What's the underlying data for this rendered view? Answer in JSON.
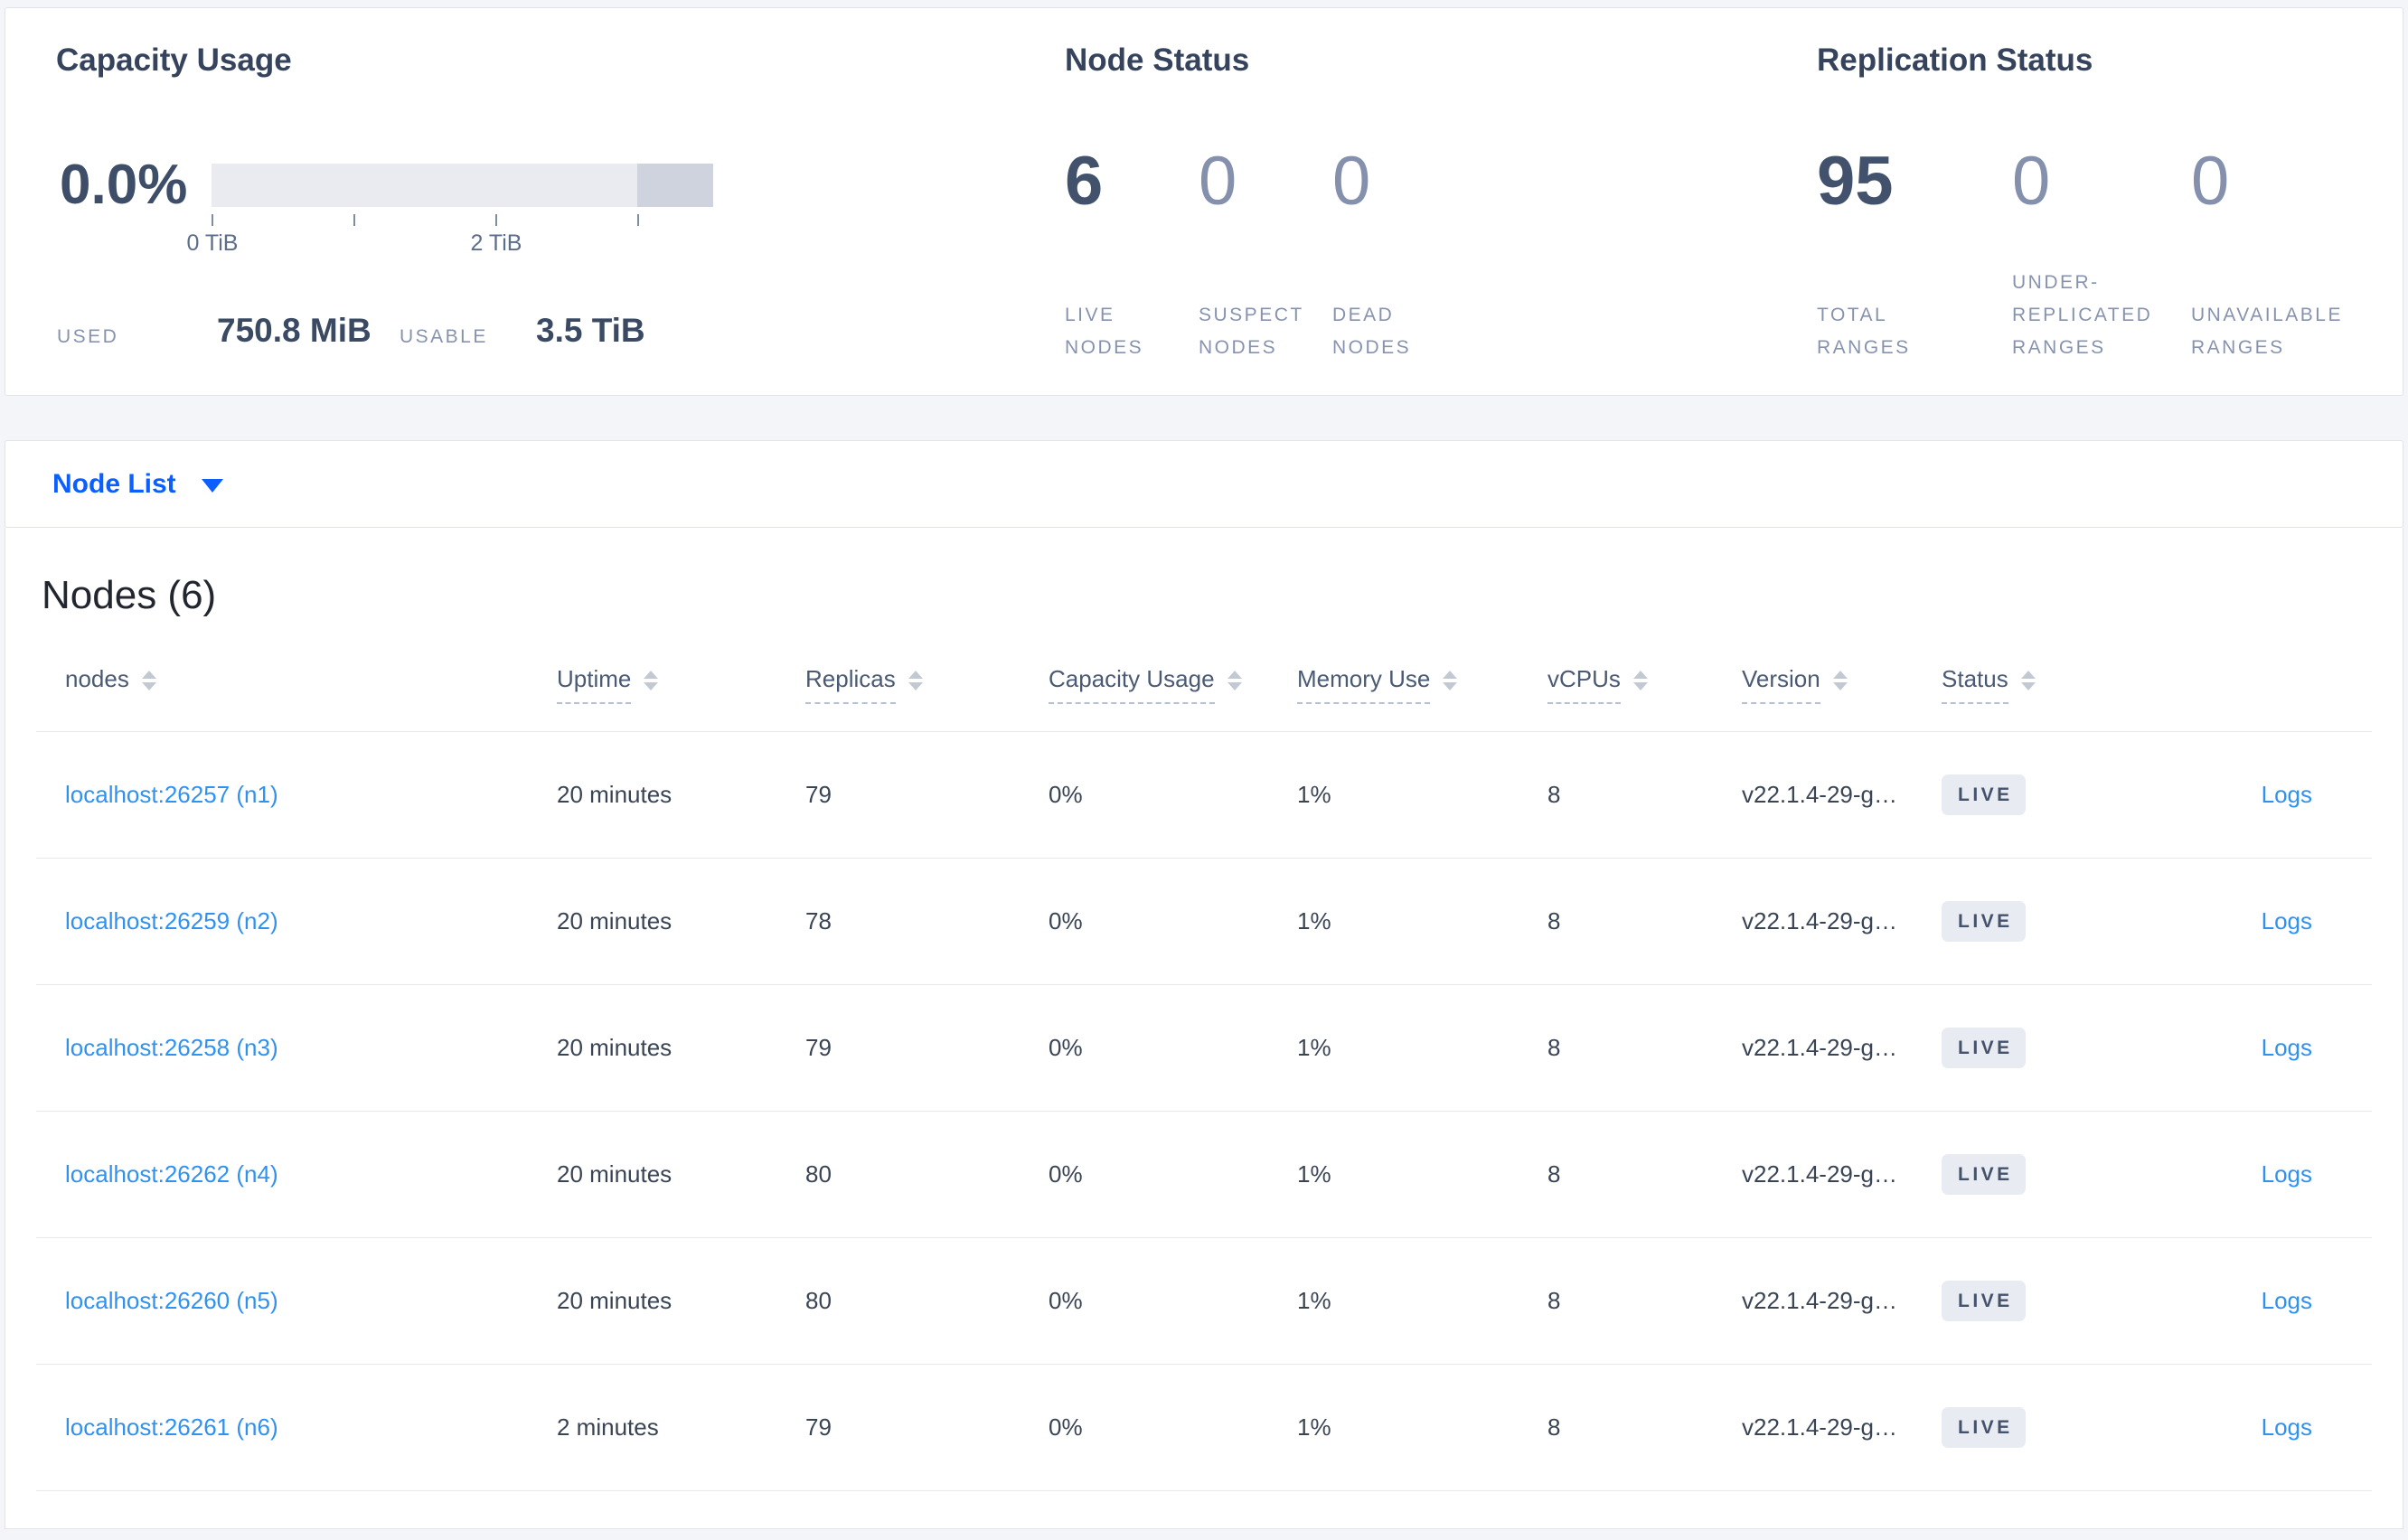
{
  "summary": {
    "capacity": {
      "title": "Capacity Usage",
      "percent": "0.0%",
      "axis_tick_labels": [
        "0 TiB",
        "2 TiB"
      ],
      "used_label": "USED",
      "used_value": "750.8 MiB",
      "usable_label": "USABLE",
      "usable_value": "3.5 TiB"
    },
    "node_status": {
      "title": "Node Status",
      "stats": [
        {
          "value": "6",
          "label": "LIVE NODES"
        },
        {
          "value": "0",
          "label": "SUSPECT NODES"
        },
        {
          "value": "0",
          "label": "DEAD NODES"
        }
      ]
    },
    "replication": {
      "title": "Replication Status",
      "stats": [
        {
          "value": "95",
          "label": "TOTAL RANGES"
        },
        {
          "value": "0",
          "label": "UNDER-REPLICATED RANGES"
        },
        {
          "value": "0",
          "label": "UNAVAILABLE RANGES"
        }
      ]
    }
  },
  "view_selector": {
    "label": "Node List"
  },
  "nodes_panel": {
    "title": "Nodes (6)",
    "logs_label": "Logs",
    "columns": [
      {
        "label": "nodes",
        "underline": false,
        "sortable": true
      },
      {
        "label": "Uptime",
        "underline": true,
        "sortable": true
      },
      {
        "label": "Replicas",
        "underline": true,
        "sortable": true
      },
      {
        "label": "Capacity Usage",
        "underline": true,
        "sortable": true
      },
      {
        "label": "Memory Use",
        "underline": true,
        "sortable": true
      },
      {
        "label": "vCPUs",
        "underline": true,
        "sortable": true
      },
      {
        "label": "Version",
        "underline": true,
        "sortable": true
      },
      {
        "label": "Status",
        "underline": true,
        "sortable": true
      },
      {
        "label": "",
        "underline": false,
        "sortable": false
      }
    ],
    "rows": [
      {
        "address": "localhost:26257 (n1)",
        "uptime": "20 minutes",
        "replicas": "79",
        "capacity_usage": "0%",
        "memory_use": "1%",
        "vcpus": "8",
        "version": "v22.1.4-29-g…",
        "status": "LIVE"
      },
      {
        "address": "localhost:26259 (n2)",
        "uptime": "20 minutes",
        "replicas": "78",
        "capacity_usage": "0%",
        "memory_use": "1%",
        "vcpus": "8",
        "version": "v22.1.4-29-g…",
        "status": "LIVE"
      },
      {
        "address": "localhost:26258 (n3)",
        "uptime": "20 minutes",
        "replicas": "79",
        "capacity_usage": "0%",
        "memory_use": "1%",
        "vcpus": "8",
        "version": "v22.1.4-29-g…",
        "status": "LIVE"
      },
      {
        "address": "localhost:26262 (n4)",
        "uptime": "20 minutes",
        "replicas": "80",
        "capacity_usage": "0%",
        "memory_use": "1%",
        "vcpus": "8",
        "version": "v22.1.4-29-g…",
        "status": "LIVE"
      },
      {
        "address": "localhost:26260 (n5)",
        "uptime": "20 minutes",
        "replicas": "80",
        "capacity_usage": "0%",
        "memory_use": "1%",
        "vcpus": "8",
        "version": "v22.1.4-29-g…",
        "status": "LIVE"
      },
      {
        "address": "localhost:26261 (n6)",
        "uptime": "2 minutes",
        "replicas": "79",
        "capacity_usage": "0%",
        "memory_use": "1%",
        "vcpus": "8",
        "version": "v22.1.4-29-g…",
        "status": "LIVE"
      }
    ]
  }
}
